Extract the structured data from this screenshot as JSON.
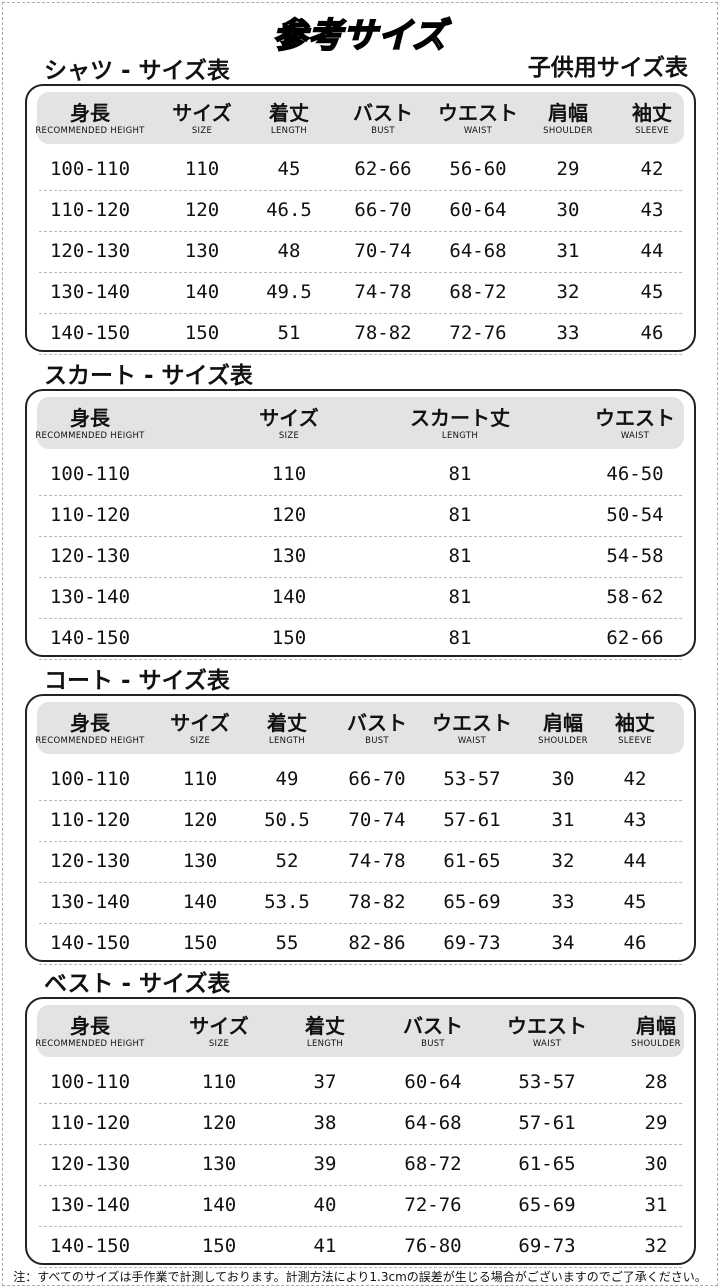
{
  "title": "参考サイズ",
  "subtitle": "子供用サイズ表",
  "note": "注：すべてのサイズは手作業で計測しております。計測方法により1.3cmの誤差が生じる場合がございますのでご了承ください。",
  "tables": [
    {
      "name": "シャツ - サイズ表",
      "headers": [
        [
          "身長",
          "RECOMMENDED HEIGHT"
        ],
        [
          "サイズ",
          "SIZE"
        ],
        [
          "着丈",
          "LENGTH"
        ],
        [
          "バスト",
          "BUST"
        ],
        [
          "ウエスト",
          "WAIST"
        ],
        [
          "肩幅",
          "SHOULDER"
        ],
        [
          "袖丈",
          "SLEEVE"
        ]
      ],
      "rows": [
        [
          "100-110",
          "110",
          "45",
          "62-66",
          "56-60",
          "29",
          "42"
        ],
        [
          "110-120",
          "120",
          "46.5",
          "66-70",
          "60-64",
          "30",
          "43"
        ],
        [
          "120-130",
          "130",
          "48",
          "70-74",
          "64-68",
          "31",
          "44"
        ],
        [
          "130-140",
          "140",
          "49.5",
          "74-78",
          "68-72",
          "32",
          "45"
        ],
        [
          "140-150",
          "150",
          "51",
          "78-82",
          "72-76",
          "33",
          "46"
        ]
      ]
    },
    {
      "name": "スカート - サイズ表",
      "headers": [
        [
          "身長",
          "RECOMMENDED HEIGHT"
        ],
        [
          "サイズ",
          "SIZE"
        ],
        [
          "スカート丈",
          "LENGTH"
        ],
        [
          "ウエスト",
          "WAIST"
        ]
      ],
      "rows": [
        [
          "100-110",
          "110",
          "81",
          "46-50"
        ],
        [
          "110-120",
          "120",
          "81",
          "50-54"
        ],
        [
          "120-130",
          "130",
          "81",
          "54-58"
        ],
        [
          "130-140",
          "140",
          "81",
          "58-62"
        ],
        [
          "140-150",
          "150",
          "81",
          "62-66"
        ]
      ]
    },
    {
      "name": "コート - サイズ表",
      "headers": [
        [
          "身長",
          "RECOMMENDED HEIGHT"
        ],
        [
          "サイズ",
          "SIZE"
        ],
        [
          "着丈",
          "LENGTH"
        ],
        [
          "バスト",
          "BUST"
        ],
        [
          "ウエスト",
          "WAIST"
        ],
        [
          "肩幅",
          "SHOULDER"
        ],
        [
          "袖丈",
          "SLEEVE"
        ]
      ],
      "rows": [
        [
          "100-110",
          "110",
          "49",
          "66-70",
          "53-57",
          "30",
          "42"
        ],
        [
          "110-120",
          "120",
          "50.5",
          "70-74",
          "57-61",
          "31",
          "43"
        ],
        [
          "120-130",
          "130",
          "52",
          "74-78",
          "61-65",
          "32",
          "44"
        ],
        [
          "130-140",
          "140",
          "53.5",
          "78-82",
          "65-69",
          "33",
          "45"
        ],
        [
          "140-150",
          "150",
          "55",
          "82-86",
          "69-73",
          "34",
          "46"
        ]
      ]
    },
    {
      "name": "ベスト - サイズ表",
      "headers": [
        [
          "身長",
          "RECOMMENDED HEIGHT"
        ],
        [
          "サイズ",
          "SIZE"
        ],
        [
          "着丈",
          "LENGTH"
        ],
        [
          "バスト",
          "BUST"
        ],
        [
          "ウエスト",
          "WAIST"
        ],
        [
          "肩幅",
          "SHOULDER"
        ]
      ],
      "rows": [
        [
          "100-110",
          "110",
          "37",
          "60-64",
          "53-57",
          "28"
        ],
        [
          "110-120",
          "120",
          "38",
          "64-68",
          "57-61",
          "29"
        ],
        [
          "120-130",
          "130",
          "39",
          "68-72",
          "61-65",
          "30"
        ],
        [
          "130-140",
          "140",
          "40",
          "72-76",
          "65-69",
          "31"
        ],
        [
          "140-150",
          "150",
          "41",
          "76-80",
          "69-73",
          "32"
        ]
      ]
    }
  ]
}
